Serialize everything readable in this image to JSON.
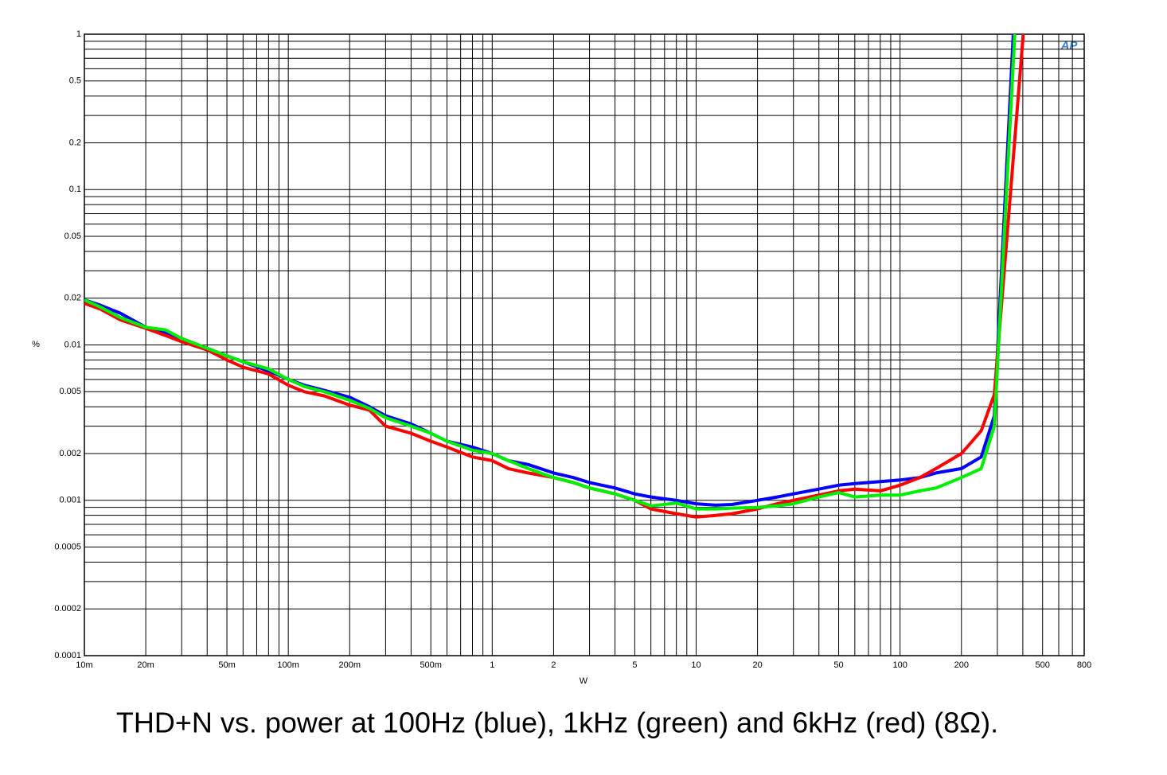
{
  "chart_data": {
    "type": "line",
    "title": "THD+N vs. power at 100Hz (blue), 1kHz (green) and 6kHz (red) (8Ω).",
    "xlabel": "W",
    "ylabel": "%",
    "logo": "AP",
    "xscale": "log",
    "yscale": "log",
    "grid": true,
    "xlim": [
      0.01,
      800
    ],
    "ylim": [
      0.0001,
      1
    ],
    "xticks": [
      {
        "value": 0.01,
        "label": "10m"
      },
      {
        "value": 0.02,
        "label": "20m"
      },
      {
        "value": 0.05,
        "label": "50m"
      },
      {
        "value": 0.1,
        "label": "100m"
      },
      {
        "value": 0.2,
        "label": "200m"
      },
      {
        "value": 0.5,
        "label": "500m"
      },
      1,
      2,
      5,
      10,
      20,
      50,
      100,
      200,
      500,
      800
    ],
    "xminorticks": [
      0.03,
      0.04,
      0.06,
      0.07,
      0.08,
      0.09,
      0.3,
      0.4,
      0.6,
      0.7,
      0.8,
      0.9,
      3,
      4,
      6,
      7,
      8,
      9,
      30,
      40,
      60,
      70,
      80,
      90,
      300,
      400,
      600,
      700
    ],
    "yticks": [
      0.0001,
      0.0002,
      0.0005,
      0.001,
      0.002,
      0.005,
      0.01,
      0.02,
      0.05,
      0.1,
      0.2,
      0.5,
      1
    ],
    "yminorticks": [
      0.0003,
      0.0004,
      0.0006,
      0.0007,
      0.0008,
      0.0009,
      0.003,
      0.004,
      0.006,
      0.007,
      0.008,
      0.009,
      0.03,
      0.04,
      0.06,
      0.07,
      0.08,
      0.09,
      0.3,
      0.4,
      0.6,
      0.7,
      0.8,
      0.9
    ],
    "series": [
      {
        "color": "#0000ff",
        "x": [
          0.01,
          0.012,
          0.015,
          0.02,
          0.025,
          0.03,
          0.04,
          0.05,
          0.06,
          0.08,
          0.1,
          0.12,
          0.15,
          0.2,
          0.25,
          0.3,
          0.4,
          0.5,
          0.6,
          0.8,
          1,
          1.2,
          1.5,
          2,
          2.5,
          3,
          4,
          5,
          6,
          8,
          10,
          12.5,
          15,
          20,
          25,
          30,
          40,
          50,
          60,
          80,
          100,
          125,
          150,
          200,
          250,
          290,
          359
        ],
        "values": [
          0.0195,
          0.018,
          0.016,
          0.013,
          0.012,
          0.011,
          0.0095,
          0.0085,
          0.0078,
          0.0068,
          0.006,
          0.0055,
          0.0051,
          0.0046,
          0.004,
          0.0035,
          0.0031,
          0.0027,
          0.0024,
          0.0022,
          0.002,
          0.0018,
          0.0017,
          0.0015,
          0.0014,
          0.0013,
          0.0012,
          0.0011,
          0.00105,
          0.001,
          0.00095,
          0.00093,
          0.00094,
          0.001,
          0.00105,
          0.0011,
          0.00118,
          0.00125,
          0.00128,
          0.00132,
          0.00135,
          0.0014,
          0.0015,
          0.0016,
          0.0019,
          0.0035,
          1
        ]
      },
      {
        "color": "#ff0000",
        "x": [
          0.01,
          0.012,
          0.015,
          0.02,
          0.025,
          0.03,
          0.04,
          0.05,
          0.06,
          0.08,
          0.1,
          0.12,
          0.15,
          0.2,
          0.25,
          0.3,
          0.4,
          0.5,
          0.6,
          0.8,
          1,
          1.2,
          1.5,
          2,
          2.5,
          3,
          4,
          5,
          6,
          8,
          10,
          12.5,
          15,
          20,
          25,
          30,
          40,
          50,
          60,
          80,
          100,
          125,
          150,
          200,
          250,
          290,
          402
        ],
        "values": [
          0.0185,
          0.017,
          0.0145,
          0.0128,
          0.0115,
          0.0105,
          0.0093,
          0.008,
          0.0072,
          0.0065,
          0.0055,
          0.005,
          0.0047,
          0.0041,
          0.0038,
          0.003,
          0.0027,
          0.0024,
          0.0022,
          0.0019,
          0.0018,
          0.0016,
          0.0015,
          0.0014,
          0.0013,
          0.0012,
          0.0011,
          0.001,
          0.00088,
          0.00082,
          0.00078,
          0.0008,
          0.00082,
          0.00088,
          0.00095,
          0.001,
          0.00108,
          0.00115,
          0.00118,
          0.00115,
          0.00125,
          0.0014,
          0.0016,
          0.002,
          0.0028,
          0.0048,
          1
        ]
      },
      {
        "color": "#00ee00",
        "x": [
          0.01,
          0.012,
          0.015,
          0.02,
          0.025,
          0.03,
          0.04,
          0.05,
          0.06,
          0.08,
          0.1,
          0.12,
          0.15,
          0.2,
          0.25,
          0.3,
          0.4,
          0.5,
          0.6,
          0.8,
          1,
          1.2,
          1.5,
          2,
          2.5,
          3,
          4,
          5,
          6,
          8,
          10,
          12.5,
          15,
          20,
          25,
          30,
          40,
          50,
          60,
          80,
          100,
          125,
          150,
          200,
          250,
          290,
          365
        ],
        "values": [
          0.0195,
          0.0175,
          0.015,
          0.013,
          0.0125,
          0.011,
          0.0095,
          0.0085,
          0.0078,
          0.007,
          0.006,
          0.0054,
          0.005,
          0.0044,
          0.0039,
          0.0034,
          0.003,
          0.0027,
          0.0024,
          0.0021,
          0.002,
          0.0018,
          0.0016,
          0.0014,
          0.0013,
          0.0012,
          0.0011,
          0.001,
          0.00092,
          0.00096,
          0.00088,
          0.00088,
          0.00089,
          0.0009,
          0.00092,
          0.00095,
          0.00105,
          0.00112,
          0.00105,
          0.00108,
          0.00108,
          0.00115,
          0.0012,
          0.0014,
          0.0016,
          0.003,
          1
        ]
      }
    ]
  }
}
